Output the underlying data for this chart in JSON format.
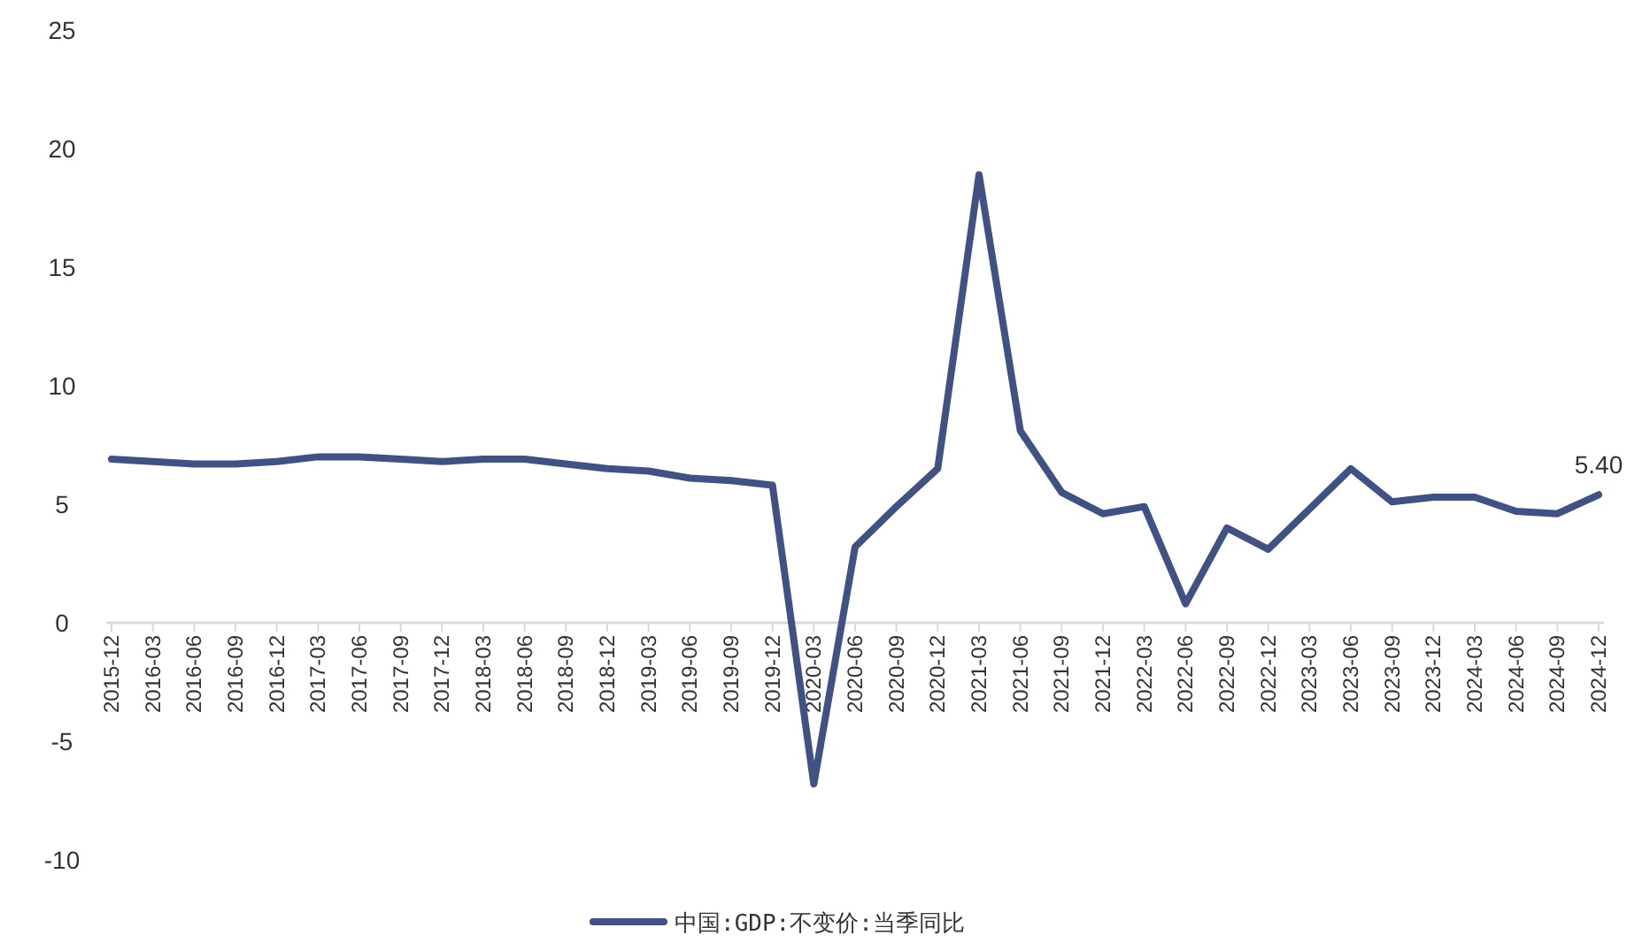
{
  "chart_data": {
    "type": "line",
    "categories": [
      "2015-12",
      "2016-03",
      "2016-06",
      "2016-09",
      "2016-12",
      "2017-03",
      "2017-06",
      "2017-09",
      "2017-12",
      "2018-03",
      "2018-06",
      "2018-09",
      "2018-12",
      "2019-03",
      "2019-06",
      "2019-09",
      "2019-12",
      "2020-03",
      "2020-06",
      "2020-09",
      "2020-12",
      "2021-03",
      "2021-06",
      "2021-09",
      "2021-12",
      "2022-03",
      "2022-06",
      "2022-09",
      "2022-12",
      "2023-03",
      "2023-06",
      "2023-09",
      "2023-12",
      "2024-03",
      "2024-06",
      "2024-09",
      "2024-12"
    ],
    "series": [
      {
        "name": "中国:GDP:不变价:当季同比",
        "color": "#3f5185",
        "values": [
          6.9,
          6.8,
          6.7,
          6.7,
          6.8,
          7.0,
          7.0,
          6.9,
          6.8,
          6.9,
          6.9,
          6.7,
          6.5,
          6.4,
          6.1,
          6.0,
          5.8,
          -6.8,
          3.2,
          4.9,
          6.5,
          18.9,
          8.1,
          5.5,
          4.6,
          4.9,
          0.8,
          4.0,
          3.1,
          4.8,
          6.5,
          5.1,
          5.3,
          5.3,
          4.7,
          4.6,
          5.4
        ],
        "value_labels": [
          null,
          null,
          null,
          null,
          null,
          null,
          null,
          null,
          null,
          null,
          null,
          null,
          null,
          null,
          null,
          null,
          null,
          null,
          null,
          null,
          null,
          null,
          null,
          null,
          null,
          null,
          null,
          null,
          null,
          null,
          null,
          null,
          null,
          null,
          null,
          null,
          "5.40"
        ]
      }
    ],
    "ylim": [
      -10,
      25
    ],
    "yticks": [
      -10,
      -5,
      0,
      5,
      10,
      15,
      20,
      25
    ],
    "legend": "bottom",
    "marker": "none",
    "line_style": "solid",
    "grid": false
  }
}
